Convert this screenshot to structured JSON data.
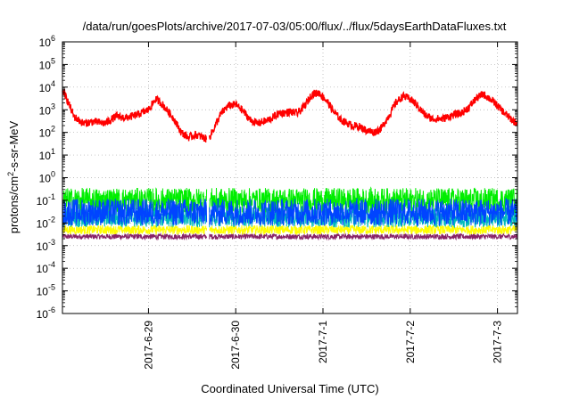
{
  "chart_data": {
    "type": "line",
    "title": "/data/run/goesPlots/archive/2017-07-03/05:00/flux/../flux/5daysEarthDataFluxes.txt",
    "xlabel": "Coordinated Universal Time (UTC)",
    "ylabel_parts": [
      "protons/cm",
      "2",
      "-s-sr-MeV"
    ],
    "y_scale": "log",
    "ylim": [
      1e-06,
      1000000.0
    ],
    "y_ticks": [
      {
        "value": 1000000.0,
        "mant": "10",
        "exp": "6"
      },
      {
        "value": 100000.0,
        "mant": "10",
        "exp": "5"
      },
      {
        "value": 10000.0,
        "mant": "10",
        "exp": "4"
      },
      {
        "value": 1000.0,
        "mant": "10",
        "exp": "3"
      },
      {
        "value": 100.0,
        "mant": "10",
        "exp": "2"
      },
      {
        "value": 10.0,
        "mant": "10",
        "exp": "1"
      },
      {
        "value": 1.0,
        "mant": "10",
        "exp": "0"
      },
      {
        "value": 0.1,
        "mant": "10",
        "exp": "-1"
      },
      {
        "value": 0.01,
        "mant": "10",
        "exp": "-2"
      },
      {
        "value": 0.001,
        "mant": "10",
        "exp": "-3"
      },
      {
        "value": 0.0001,
        "mant": "10",
        "exp": "-4"
      },
      {
        "value": 1e-05,
        "mant": "10",
        "exp": "-5"
      },
      {
        "value": 1e-06,
        "mant": "10",
        "exp": "-6"
      }
    ],
    "xlim": [
      "2017-06-28 00:20",
      "2017-07-03 05:30"
    ],
    "x_ticks": [
      {
        "value": "2017-06-29",
        "label": "2017-6-29"
      },
      {
        "value": "2017-06-30",
        "label": "2017-6-30"
      },
      {
        "value": "2017-07-01",
        "label": "2017-7-1"
      },
      {
        "value": "2017-07-02",
        "label": "2017-7-2"
      },
      {
        "value": "2017-07-03",
        "label": "2017-7-3"
      }
    ],
    "grid": true,
    "data_gap": [
      "2017-06-29 16:00",
      "2017-06-29 16:45"
    ],
    "series": [
      {
        "color": "#ff0000",
        "points": [
          [
            "2017-06-28 00:20",
            8000
          ],
          [
            "2017-06-28 02:00",
            2000
          ],
          [
            "2017-06-28 03:30",
            500
          ],
          [
            "2017-06-28 06:00",
            250
          ],
          [
            "2017-06-28 09:00",
            300
          ],
          [
            "2017-06-28 12:00",
            250
          ],
          [
            "2017-06-28 15:00",
            500
          ],
          [
            "2017-06-28 18:00",
            450
          ],
          [
            "2017-06-28 21:00",
            600
          ],
          [
            "2017-06-29 00:00",
            1000
          ],
          [
            "2017-06-29 02:00",
            3000
          ],
          [
            "2017-06-29 03:30",
            2000
          ],
          [
            "2017-06-29 05:00",
            1000
          ],
          [
            "2017-06-29 07:00",
            400
          ],
          [
            "2017-06-29 09:00",
            100
          ],
          [
            "2017-06-29 11:00",
            60
          ],
          [
            "2017-06-29 13:00",
            80
          ],
          [
            "2017-06-29 15:00",
            60
          ],
          [
            "2017-06-29 16:00",
            50
          ],
          [
            "2017-06-29 16:45",
            60
          ],
          [
            "2017-06-29 18:00",
            150
          ],
          [
            "2017-06-29 20:00",
            700
          ],
          [
            "2017-06-29 22:00",
            1500
          ],
          [
            "2017-06-30 00:00",
            1700
          ],
          [
            "2017-06-30 02:00",
            900
          ],
          [
            "2017-06-30 04:00",
            350
          ],
          [
            "2017-06-30 06:00",
            250
          ],
          [
            "2017-06-30 09:00",
            350
          ],
          [
            "2017-06-30 12:00",
            700
          ],
          [
            "2017-06-30 15:00",
            800
          ],
          [
            "2017-06-30 17:00",
            700
          ],
          [
            "2017-06-30 19:00",
            1500
          ],
          [
            "2017-06-30 21:00",
            5000
          ],
          [
            "2017-06-30 23:00",
            5500
          ],
          [
            "2017-07-01 01:00",
            2500
          ],
          [
            "2017-07-01 03:00",
            800
          ],
          [
            "2017-07-01 05:00",
            350
          ],
          [
            "2017-07-01 08:00",
            200
          ],
          [
            "2017-07-01 10:00",
            180
          ],
          [
            "2017-07-01 12:00",
            120
          ],
          [
            "2017-07-01 14:00",
            100
          ],
          [
            "2017-07-01 16:00",
            150
          ],
          [
            "2017-07-01 18:00",
            500
          ],
          [
            "2017-07-01 20:00",
            2000
          ],
          [
            "2017-07-01 22:00",
            4000
          ],
          [
            "2017-07-02 00:00",
            3000
          ],
          [
            "2017-07-02 02:00",
            1500
          ],
          [
            "2017-07-02 04:00",
            600
          ],
          [
            "2017-07-02 06:00",
            400
          ],
          [
            "2017-07-02 09:00",
            400
          ],
          [
            "2017-07-02 12:00",
            600
          ],
          [
            "2017-07-02 14:00",
            700
          ],
          [
            "2017-07-02 16:00",
            1200
          ],
          [
            "2017-07-02 18:00",
            3000
          ],
          [
            "2017-07-02 20:00",
            5000
          ],
          [
            "2017-07-02 22:00",
            3000
          ],
          [
            "2017-07-03 00:00",
            1500
          ],
          [
            "2017-07-03 02:00",
            700
          ],
          [
            "2017-07-03 04:00",
            350
          ],
          [
            "2017-07-03 05:30",
            250
          ]
        ]
      },
      {
        "color": "#00ee00",
        "level": 0.1,
        "spread": 0.55
      },
      {
        "color": "#0044ff",
        "level": 0.03,
        "spread": 0.6
      },
      {
        "color": "#00bbbb",
        "level": 0.018,
        "spread": 0.45
      },
      {
        "color": "#ffff00",
        "level": 0.005,
        "spread": 0.2
      },
      {
        "color": "#882266",
        "level": 0.0025,
        "spread": 0.12
      }
    ]
  }
}
